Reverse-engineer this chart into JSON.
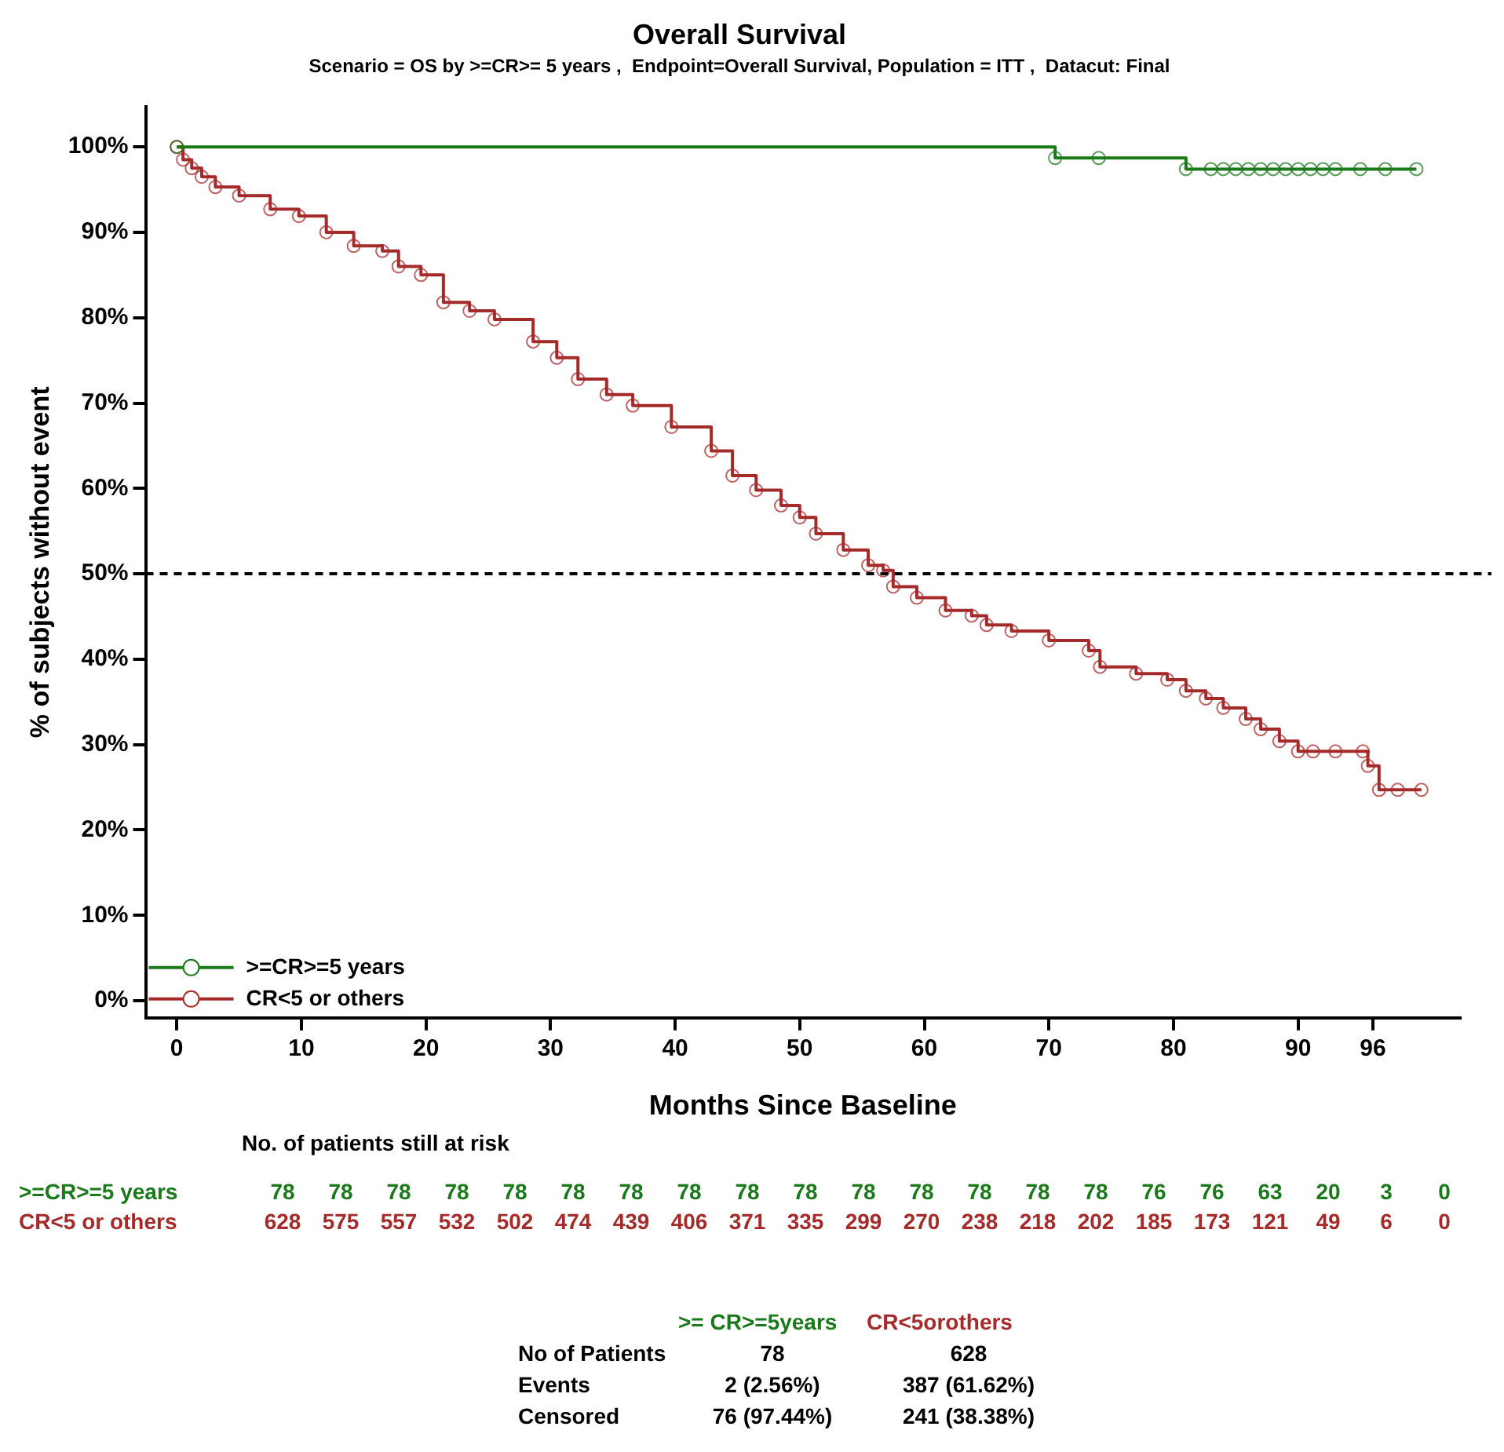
{
  "chart_data": {
    "type": "step",
    "title": "Overall Survival",
    "subtitle": "Scenario = OS by >=CR>= 5 years ,  Endpoint=Overall Survival, Population = ITT ,  Datacut: Final",
    "xlabel": "Months Since Baseline",
    "ylabel": "% of subjects without event",
    "series": [
      {
        "name": ">=CR>=5 years",
        "color": "#1a7a1a",
        "x": [
          0,
          70.5,
          74,
          81,
          83,
          84,
          85,
          86,
          87,
          88,
          89,
          90,
          91,
          92,
          93,
          95,
          97,
          99.5
        ],
        "values": [
          100,
          98.7,
          98.7,
          97.4,
          97.4,
          97.4,
          97.4,
          97.4,
          97.4,
          97.4,
          97.4,
          97.4,
          97.4,
          97.4,
          97.4,
          97.4,
          97.4,
          97.4
        ]
      },
      {
        "name": "CR<5 or others",
        "color": "#a52a2a",
        "x": [
          0,
          0.5,
          1.2,
          2,
          3.1,
          5,
          7.5,
          9.8,
          12,
          14.2,
          16.5,
          17.8,
          19.6,
          21.4,
          23.5,
          25.5,
          28.6,
          30.5,
          32.2,
          34.5,
          36.6,
          39.7,
          42.9,
          44.6,
          46.5,
          48.5,
          50,
          51.3,
          53.5,
          55.5,
          56.7,
          57.5,
          59.4,
          61.7,
          63.8,
          65,
          67,
          70,
          73.2,
          74.1,
          77,
          79.5,
          81,
          82.6,
          84,
          85.8,
          87,
          88.5,
          90,
          91.2,
          93,
          95.2,
          95.6,
          96.5,
          98,
          99.9
        ],
        "values": [
          100,
          98.5,
          97.5,
          96.5,
          95.3,
          94.3,
          92.7,
          91.9,
          90,
          88.4,
          87.8,
          86,
          85,
          81.8,
          80.8,
          79.8,
          77.2,
          75.3,
          72.8,
          71,
          69.7,
          67.2,
          64.4,
          61.5,
          59.8,
          58,
          56.6,
          54.7,
          52.8,
          51,
          50.4,
          48.5,
          47.2,
          45.7,
          45.1,
          44,
          43.3,
          42.2,
          41,
          39.1,
          38.3,
          37.6,
          36.3,
          35.4,
          34.3,
          33,
          31.8,
          30.4,
          29.2,
          29.2,
          29.2,
          29.2,
          27.5,
          24.7,
          24.7,
          24.7
        ]
      }
    ],
    "xlim": [
      -2.5,
      103
    ],
    "xticks": [
      0,
      10,
      20,
      30,
      40,
      50,
      60,
      70,
      80,
      90,
      96
    ],
    "ylim": [
      -2,
      104.7
    ],
    "yticks": [
      {
        "value": 0,
        "label": "0%"
      },
      {
        "value": 10,
        "label": "10%"
      },
      {
        "value": 20,
        "label": "20%"
      },
      {
        "value": 30,
        "label": "30%"
      },
      {
        "value": 40,
        "label": "40%"
      },
      {
        "value": 50,
        "label": "50%"
      },
      {
        "value": 60,
        "label": "60%"
      },
      {
        "value": 70,
        "label": "70%"
      },
      {
        "value": 80,
        "label": "80%"
      },
      {
        "value": 90,
        "label": "90%"
      },
      {
        "value": 100,
        "label": "100%"
      }
    ],
    "ref_lines": [
      {
        "axis": "y",
        "value": 50,
        "color": "#000000",
        "line_style": "dashed"
      }
    ],
    "legend": "bottom left",
    "marker": "circle",
    "line_style": "solid",
    "annotations": [
      "No. of patients still at risk",
      "78 78 78 78 78 78 78 78 78 78 78 78 78 78 78 76 76 63 20 3 0",
      "628 575 557 532 502 474 439 406 371 335 299 270 238 218 202 185 173 121 49 6 0",
      ">= CR>=5years",
      "CR<5orothers",
      "No of Patients",
      "78",
      "628",
      "Events",
      "2 (2.56%)",
      "387 (61.62%)",
      "Censored",
      "76 (97.44%)",
      "241 (38.38%)"
    ]
  }
}
